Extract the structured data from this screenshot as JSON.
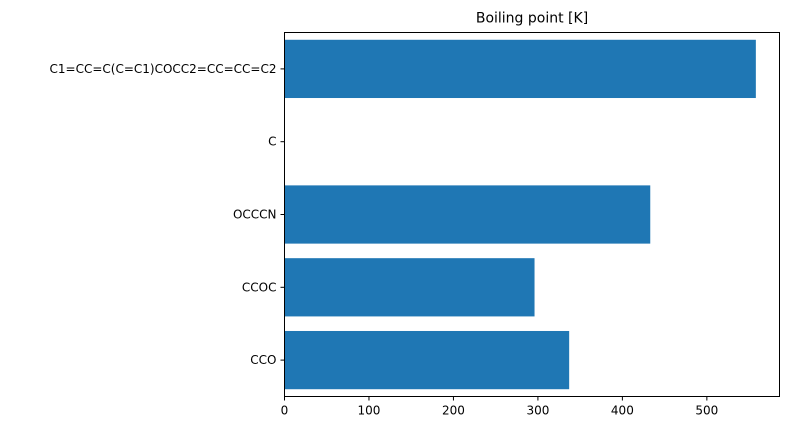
{
  "chart_data": {
    "type": "bar",
    "orientation": "horizontal",
    "title": "Boiling point [K]",
    "xlabel": "",
    "ylabel": "",
    "categories": [
      "CCO",
      "CCOC",
      "OCCCN",
      "C",
      "C1=CC=C(C=C1)COCC2=CC=CC=C2"
    ],
    "values": [
      337,
      296,
      433,
      0,
      558
    ],
    "x_ticks": [
      0,
      100,
      200,
      300,
      400,
      500
    ],
    "xlim": [
      0,
      586
    ],
    "grid": false,
    "bar_color": "#1f77b4"
  }
}
